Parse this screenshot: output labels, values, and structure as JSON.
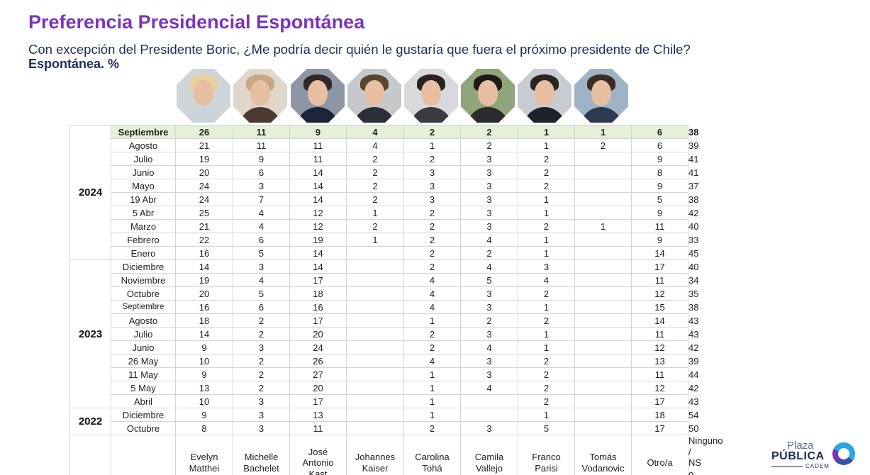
{
  "header": {
    "title": "Preferencia Presidencial Espontánea",
    "subtitle": "Con excepción del Presidente Boric, ¿Me podría decir quién le gustaría que fuera el próximo presidente de Chile?",
    "subtitle2": "Espontánea. %"
  },
  "photos": [
    {
      "icon": "evelyn-matthei-photo-icon",
      "bg": "#cfd6da",
      "hair": "#e8cf9e",
      "body": "#c9d4d8"
    },
    {
      "icon": "michelle-bachelet-photo-icon",
      "bg": "#e0d6cc",
      "hair": "#c8a882",
      "body": "#4a3a32"
    },
    {
      "icon": "jose-antonio-kast-photo-icon",
      "bg": "#8c96a4",
      "hair": "#2f2a26",
      "body": "#1c2638"
    },
    {
      "icon": "johannes-kaiser-photo-icon",
      "bg": "#c5c9cc",
      "hair": "#5a4630",
      "body": "#2a2f38"
    },
    {
      "icon": "carolina-toha-photo-icon",
      "bg": "#d7d9dc",
      "hair": "#2a2220",
      "body": "#3a3a40"
    },
    {
      "icon": "camila-vallejo-photo-icon",
      "bg": "#8fa67a",
      "hair": "#1f1a18",
      "body": "#2b2b2e"
    },
    {
      "icon": "franco-parisi-photo-icon",
      "bg": "#c8ccd2",
      "hair": "#2a2522",
      "body": "#1e222a"
    },
    {
      "icon": "tomas-vodanovic-photo-icon",
      "bg": "#9fb3c6",
      "hair": "#3a2c22",
      "body": "#2d3b52"
    }
  ],
  "chart_data": {
    "type": "table",
    "columns": [
      "Evelyn Matthei",
      "Michelle Bachelet",
      "José Antonio Kast",
      "Johannes Kaiser",
      "Carolina Tohá",
      "Camila Vallejo",
      "Franco Parisi",
      "Tomás Vodanovic",
      "Otro/a",
      "Ninguno / NS o NR"
    ],
    "columns_display": [
      [
        "Evelyn",
        "Matthei"
      ],
      [
        "Michelle",
        "Bachelet"
      ],
      [
        "José",
        "Antonio",
        "Kast"
      ],
      [
        "Johannes",
        "Kaiser"
      ],
      [
        "Carolina",
        "Tohá"
      ],
      [
        "Camila",
        "Vallejo"
      ],
      [
        "Franco",
        "Parisi"
      ],
      [
        "Tomás",
        "Vodanovic"
      ],
      [
        "Otro/a"
      ],
      [
        "Ninguno /",
        "NS o NR"
      ]
    ],
    "groups": [
      {
        "year": "2024",
        "rows": [
          {
            "period": "Septiembre",
            "values": [
              "26",
              "11",
              "9",
              "4",
              "2",
              "2",
              "1",
              "1",
              "6",
              "38"
            ]
          },
          {
            "period": "Agosto",
            "values": [
              "21",
              "11",
              "11",
              "4",
              "1",
              "2",
              "1",
              "2",
              "6",
              "39"
            ]
          },
          {
            "period": "Julio",
            "values": [
              "19",
              "9",
              "11",
              "2",
              "2",
              "3",
              "2",
              "",
              "9",
              "41"
            ]
          },
          {
            "period": "Junio",
            "values": [
              "20",
              "6",
              "14",
              "2",
              "3",
              "3",
              "2",
              "",
              "8",
              "41"
            ]
          },
          {
            "period": "Mayo",
            "values": [
              "24",
              "3",
              "14",
              "2",
              "3",
              "3",
              "2",
              "",
              "9",
              "37"
            ]
          },
          {
            "period": "19 Abr",
            "values": [
              "24",
              "7",
              "14",
              "2",
              "3",
              "3",
              "1",
              "",
              "5",
              "38"
            ]
          },
          {
            "period": "5 Abr",
            "values": [
              "25",
              "4",
              "12",
              "1",
              "2",
              "3",
              "1",
              "",
              "9",
              "42"
            ]
          },
          {
            "period": "Marzo",
            "values": [
              "21",
              "4",
              "12",
              "2",
              "2",
              "3",
              "2",
              "1",
              "11",
              "40"
            ]
          },
          {
            "period": "Febrero",
            "values": [
              "22",
              "6",
              "19",
              "1",
              "2",
              "4",
              "1",
              "",
              "9",
              "33"
            ]
          },
          {
            "period": "Enero",
            "values": [
              "16",
              "5",
              "14",
              "",
              "2",
              "2",
              "1",
              "",
              "14",
              "45"
            ]
          }
        ]
      },
      {
        "year": "2023",
        "rows": [
          {
            "period": "Diciembre",
            "values": [
              "14",
              "3",
              "14",
              "",
              "2",
              "4",
              "3",
              "",
              "17",
              "40"
            ]
          },
          {
            "period": "Noviembre",
            "values": [
              "19",
              "4",
              "17",
              "",
              "4",
              "5",
              "4",
              "",
              "11",
              "34"
            ]
          },
          {
            "period": "Octubre",
            "values": [
              "20",
              "5",
              "18",
              "",
              "4",
              "3",
              "2",
              "",
              "12",
              "35"
            ]
          },
          {
            "period": "Septiembre",
            "values": [
              "16",
              "6",
              "16",
              "",
              "4",
              "3",
              "1",
              "",
              "15",
              "38"
            ]
          },
          {
            "period": "Agosto",
            "values": [
              "18",
              "2",
              "17",
              "",
              "1",
              "2",
              "2",
              "",
              "14",
              "43"
            ]
          },
          {
            "period": "Julio",
            "values": [
              "14",
              "2",
              "20",
              "",
              "2",
              "3",
              "1",
              "",
              "11",
              "43"
            ]
          },
          {
            "period": "Junio",
            "values": [
              "9",
              "3",
              "24",
              "",
              "2",
              "4",
              "1",
              "",
              "12",
              "42"
            ]
          },
          {
            "period": "26 May",
            "values": [
              "10",
              "2",
              "26",
              "",
              "4",
              "3",
              "2",
              "",
              "13",
              "39"
            ]
          },
          {
            "period": "11 May",
            "values": [
              "9",
              "2",
              "27",
              "",
              "1",
              "3",
              "2",
              "",
              "11",
              "44"
            ]
          },
          {
            "period": "5 May",
            "values": [
              "13",
              "2",
              "20",
              "",
              "1",
              "4",
              "2",
              "",
              "12",
              "42"
            ]
          },
          {
            "period": "Abril",
            "values": [
              "10",
              "3",
              "17",
              "",
              "1",
              "",
              "2",
              "",
              "17",
              "43"
            ]
          }
        ]
      },
      {
        "year": "2022",
        "rows": [
          {
            "period": "Diciembre",
            "values": [
              "9",
              "3",
              "13",
              "",
              "1",
              "",
              "1",
              "",
              "18",
              "54"
            ]
          },
          {
            "period": "Octubre",
            "values": [
              "8",
              "3",
              "11",
              "",
              "2",
              "3",
              "5",
              "",
              "17",
              "50"
            ]
          }
        ]
      }
    ],
    "highlight_row_color": "#e4f0da"
  },
  "logo": {
    "line1": "Plaza",
    "line2": "PÚBLICA",
    "line3": "CADEM"
  }
}
